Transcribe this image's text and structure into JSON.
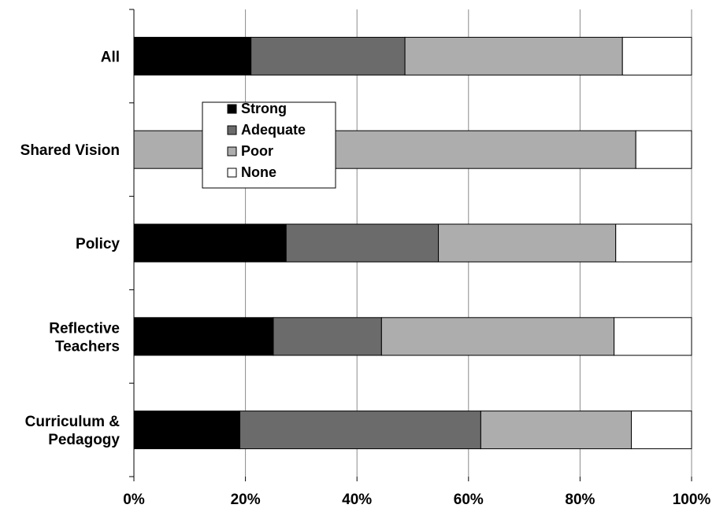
{
  "chart_data": {
    "type": "bar",
    "orientation": "horizontal",
    "stacked": true,
    "categories": [
      "All",
      "Shared Vision",
      "Policy",
      "Reflective Teachers",
      "Curriculum & Pedagogy"
    ],
    "category_label_lines": [
      [
        "All"
      ],
      [
        "Shared Vision"
      ],
      [
        "Policy"
      ],
      [
        "Reflective",
        "Teachers"
      ],
      [
        "Curriculum &",
        "Pedagogy"
      ]
    ],
    "series": [
      {
        "name": "Strong",
        "color": "#000000",
        "values": [
          21,
          0,
          27.3,
          25,
          19
        ]
      },
      {
        "name": "Adequate",
        "color": "#6b6b6b",
        "values": [
          27.6,
          0,
          27.3,
          19.4,
          43.2
        ]
      },
      {
        "name": "Poor",
        "color": "#adadad",
        "values": [
          39,
          90,
          31.8,
          41.7,
          27
        ]
      },
      {
        "name": "None",
        "color": "#ffffff",
        "values": [
          12.4,
          10,
          13.6,
          13.9,
          10.8
        ]
      }
    ],
    "x_ticks": [
      "0%",
      "20%",
      "40%",
      "60%",
      "80%",
      "100%"
    ],
    "xlim": [
      0,
      100
    ],
    "grid": true,
    "legend_position": "upper-left-inside",
    "title": "",
    "xlabel": "",
    "ylabel": ""
  }
}
